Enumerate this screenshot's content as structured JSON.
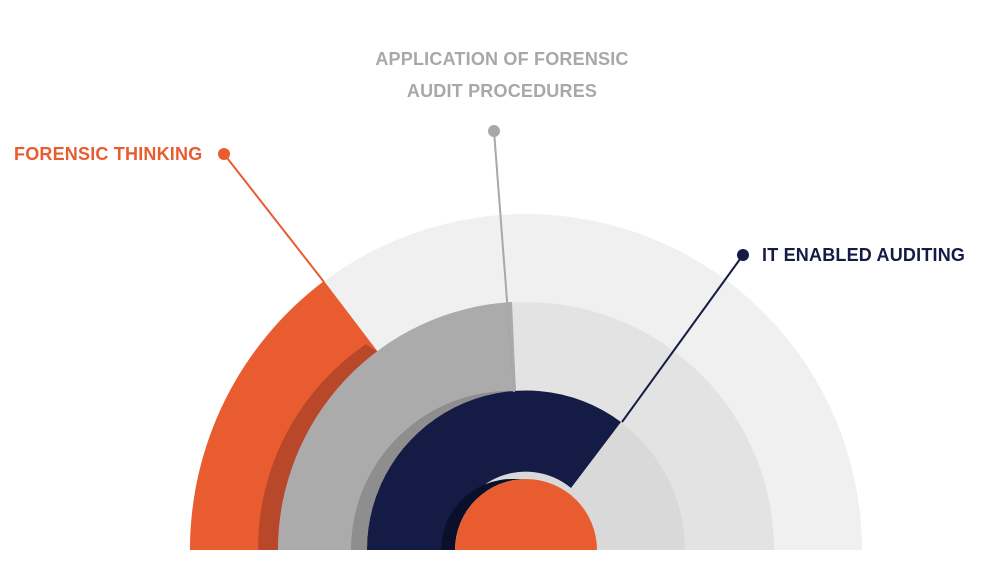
{
  "labels": {
    "forensic_thinking": "FORENSIC THINKING",
    "application_line1": "APPLICATION OF FORENSIC",
    "application_line2": "AUDIT PROCEDURES",
    "it_enabled": "IT ENABLED AUDITING"
  },
  "colors": {
    "orange": "#E85C30",
    "orange_dark": "#B9482A",
    "gray_label": "#A8A8A8",
    "navy": "#141C45",
    "ring_light": "#F0F0F0",
    "ring_mid": "#E3E3E3",
    "ring_inner_bg": "#D9D9D9",
    "gray_fill": "#ABABAB",
    "gray_fill_dark": "#8E8E8E",
    "navy_shadow": "#0A0F2A"
  }
}
